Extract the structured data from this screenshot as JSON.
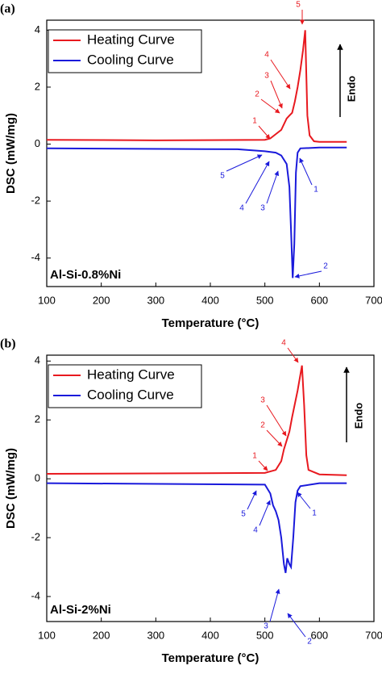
{
  "chart_data": [
    {
      "type": "line",
      "panel_label": "(a)",
      "sample_label": "Al-Si-0.8%Ni",
      "x_label": "Temperature (°C)",
      "y_label": "DSC (mW/mg)",
      "endo_label": "Endo",
      "xlim": [
        100,
        700
      ],
      "xticks": [
        100,
        200,
        300,
        400,
        500,
        600,
        700
      ],
      "ylim": [
        -5,
        4.35
      ],
      "yticks": [
        -4,
        -2,
        0,
        2,
        4
      ],
      "legend": "upper left",
      "series": [
        {
          "name": "Heating Curve",
          "color": "#e8191f",
          "x": [
            100,
            300,
            500,
            510,
            530,
            540,
            545,
            550,
            555,
            560,
            565,
            570,
            574,
            578,
            582,
            590,
            600,
            650
          ],
          "values": [
            0.15,
            0.13,
            0.15,
            0.2,
            0.5,
            0.9,
            1.0,
            1.1,
            1.5,
            2.0,
            2.6,
            3.3,
            4.0,
            1.0,
            0.3,
            0.1,
            0.08,
            0.08
          ]
        },
        {
          "name": "Cooling Curve",
          "color": "#1a1adb",
          "x": [
            100,
            450,
            500,
            520,
            530,
            540,
            545,
            548,
            551,
            554,
            557,
            560,
            565,
            600,
            650
          ],
          "values": [
            -0.15,
            -0.18,
            -0.25,
            -0.3,
            -0.4,
            -0.7,
            -1.5,
            -3.0,
            -4.7,
            -3.5,
            -1.0,
            -0.3,
            -0.15,
            -0.12,
            -0.12
          ]
        }
      ],
      "annotations": [
        {
          "text": "1",
          "color": "#e8191f"
        },
        {
          "text": "2",
          "color": "#e8191f"
        },
        {
          "text": "3",
          "color": "#e8191f"
        },
        {
          "text": "4",
          "color": "#e8191f"
        },
        {
          "text": "5",
          "color": "#e8191f"
        },
        {
          "text": "1",
          "color": "#1a1adb"
        },
        {
          "text": "2",
          "color": "#1a1adb"
        },
        {
          "text": "3",
          "color": "#1a1adb"
        },
        {
          "text": "4",
          "color": "#1a1adb"
        },
        {
          "text": "5",
          "color": "#1a1adb"
        }
      ]
    },
    {
      "type": "line",
      "panel_label": "(b)",
      "sample_label": "Al-Si-2%Ni",
      "x_label": "Temperature (°C)",
      "y_label": "DSC (mW/mg)",
      "endo_label": "Endo",
      "xlim": [
        100,
        700
      ],
      "xticks": [
        100,
        200,
        300,
        400,
        500,
        600,
        700
      ],
      "ylim": [
        -4.85,
        4.2
      ],
      "yticks": [
        -4,
        -2,
        0,
        2,
        4
      ],
      "legend": "upper left",
      "series": [
        {
          "name": "Heating Curve",
          "color": "#e8191f",
          "x": [
            100,
            500,
            520,
            530,
            535,
            540,
            545,
            550,
            560,
            568,
            572,
            576,
            580,
            600,
            650
          ],
          "values": [
            0.17,
            0.2,
            0.3,
            0.6,
            1.0,
            1.3,
            1.6,
            2.1,
            3.0,
            3.85,
            2.5,
            0.8,
            0.3,
            0.15,
            0.12
          ]
        },
        {
          "name": "Cooling Curve",
          "color": "#1a1adb",
          "x": [
            100,
            500,
            510,
            515,
            520,
            525,
            530,
            535,
            538,
            541,
            545,
            548,
            552,
            556,
            560,
            565,
            600,
            650
          ],
          "values": [
            -0.15,
            -0.2,
            -0.5,
            -0.9,
            -1.1,
            -1.4,
            -2.0,
            -2.9,
            -3.2,
            -2.7,
            -2.9,
            -3.0,
            -2.0,
            -0.8,
            -0.4,
            -0.25,
            -0.15,
            -0.15
          ]
        }
      ],
      "annotations": [
        {
          "text": "1",
          "color": "#e8191f"
        },
        {
          "text": "2",
          "color": "#e8191f"
        },
        {
          "text": "3",
          "color": "#e8191f"
        },
        {
          "text": "4",
          "color": "#e8191f"
        },
        {
          "text": "1",
          "color": "#1a1adb"
        },
        {
          "text": "2",
          "color": "#1a1adb"
        },
        {
          "text": "3",
          "color": "#1a1adb"
        },
        {
          "text": "4",
          "color": "#1a1adb"
        },
        {
          "text": "5",
          "color": "#1a1adb"
        }
      ]
    }
  ]
}
